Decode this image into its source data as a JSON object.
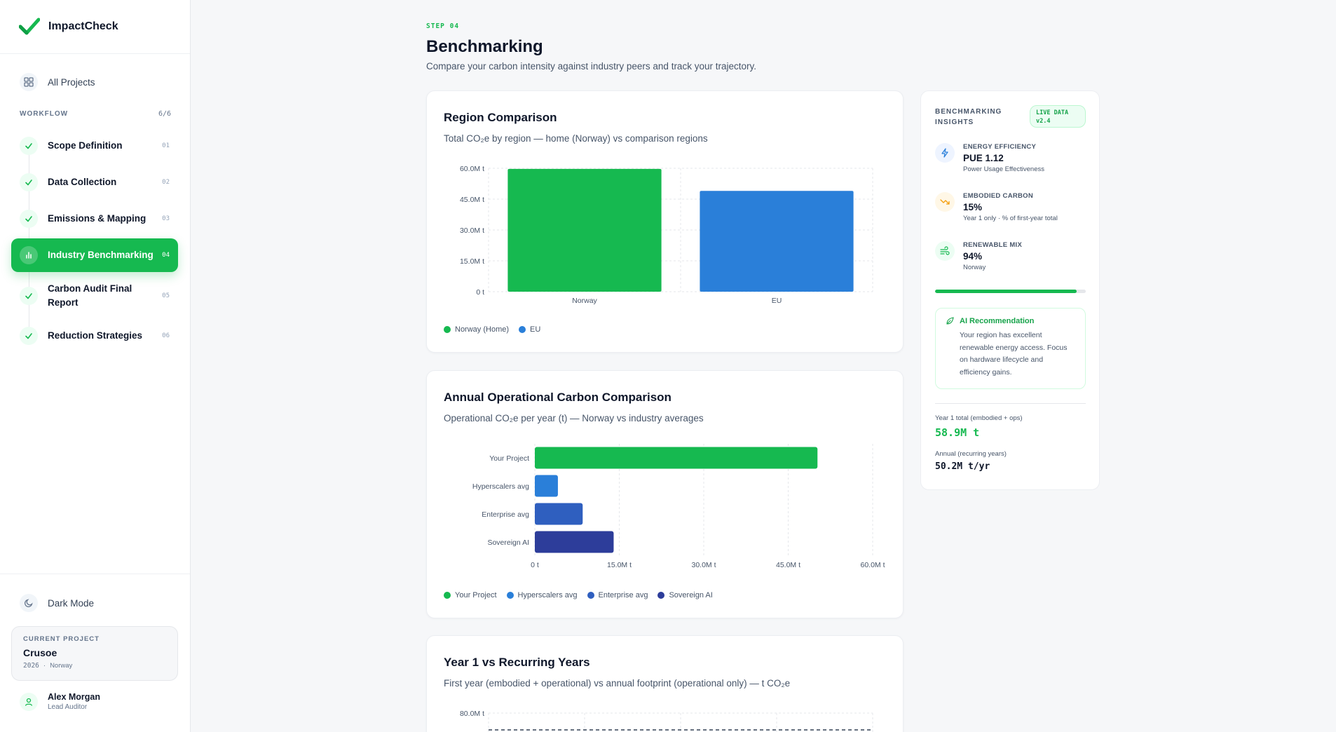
{
  "brand": {
    "name": "ImpactCheck"
  },
  "nav": {
    "all_projects": "All Projects",
    "workflow_label": "WORKFLOW",
    "workflow_count": "6/6",
    "steps": [
      {
        "label": "Scope Definition",
        "num": "01"
      },
      {
        "label": "Data Collection",
        "num": "02"
      },
      {
        "label": "Emissions & Mapping",
        "num": "03"
      },
      {
        "label": "Industry Benchmarking",
        "num": "04"
      },
      {
        "label": "Carbon Audit Final Report",
        "num": "05"
      },
      {
        "label": "Reduction Strategies",
        "num": "06"
      }
    ],
    "dark_mode": "Dark Mode"
  },
  "current_project": {
    "heading": "CURRENT PROJECT",
    "name": "Crusoe",
    "year": "2026",
    "region": "Norway"
  },
  "user": {
    "name": "Alex Morgan",
    "role": "Lead Auditor"
  },
  "page": {
    "step_tag": "STEP 04",
    "title": "Benchmarking",
    "subtitle": "Compare your carbon intensity against industry peers and track your trajectory."
  },
  "colors": {
    "accent": "#16b950",
    "blue": "#2a7fd9",
    "mid_blue": "#2f5fbf",
    "navy": "#2d3d9a"
  },
  "charts": {
    "region": {
      "title": "Region Comparison",
      "subtitle": "Total CO₂e by region — home (Norway) vs comparison regions"
    },
    "annual": {
      "title": "Annual Operational Carbon Comparison",
      "subtitle": "Operational CO₂e per year (t) — Norway vs industry averages"
    },
    "year1": {
      "title": "Year 1 vs Recurring Years",
      "subtitle": "First year (embodied + operational) vs annual footprint (operational only) — t CO₂e"
    }
  },
  "chart_data": [
    {
      "type": "bar",
      "title": "Region Comparison",
      "categories": [
        "Norway",
        "EU"
      ],
      "values": [
        59.7,
        49.0
      ],
      "unit": "M t",
      "ylim": [
        0,
        60
      ],
      "yticks": [
        "0 t",
        "15.0M t",
        "30.0M t",
        "45.0M t",
        "60.0M t"
      ],
      "legend": [
        {
          "name": "Norway (Home)",
          "color": "#16b950"
        },
        {
          "name": "EU",
          "color": "#2a7fd9"
        }
      ]
    },
    {
      "type": "bar",
      "orientation": "horizontal",
      "title": "Annual Operational Carbon Comparison",
      "categories": [
        "Your Project",
        "Hyperscalers avg",
        "Enterprise avg",
        "Sovereign AI"
      ],
      "values": [
        50.2,
        4.1,
        8.5,
        14.0
      ],
      "unit": "M t",
      "xlim": [
        0,
        60
      ],
      "xticks": [
        "0 t",
        "15.0M t",
        "30.0M t",
        "45.0M t",
        "60.0M t"
      ],
      "legend": [
        {
          "name": "Your Project",
          "color": "#16b950"
        },
        {
          "name": "Hyperscalers avg",
          "color": "#2a7fd9"
        },
        {
          "name": "Enterprise avg",
          "color": "#2f5fbf"
        },
        {
          "name": "Sovereign AI",
          "color": "#2d3d9a"
        }
      ]
    },
    {
      "type": "line",
      "title": "Year 1 vs Recurring Years",
      "yticks": [
        "80.0M t"
      ]
    }
  ],
  "insights": {
    "title": "BENCHMARKING INSIGHTS",
    "badge": "LIVE DATA v2.4",
    "energy": {
      "label": "ENERGY EFFICIENCY",
      "value": "PUE 1.12",
      "note": "Power Usage Effectiveness"
    },
    "embodied": {
      "label": "EMBODIED CARBON",
      "value": "15%",
      "note": "Year 1 only · % of first-year total"
    },
    "renewable": {
      "label": "RENEWABLE MIX",
      "value": "94%",
      "note": "Norway",
      "progress": 0.94
    },
    "ai_title": "AI Recommendation",
    "ai_text": "Your region has excellent renewable energy access. Focus on hardware lifecycle and efficiency gains.",
    "year1_label": "Year 1 total (embodied + ops)",
    "year1_value": "58.9M t",
    "annual_label": "Annual (recurring years)",
    "annual_value": "50.2M t/yr"
  }
}
